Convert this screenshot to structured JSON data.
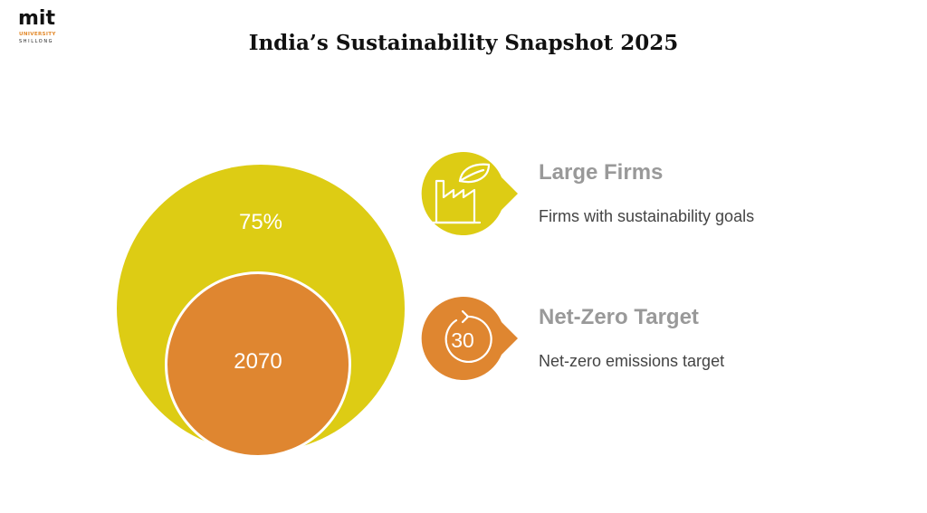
{
  "brand": {
    "logo_text": "mit",
    "logo_subtitle": "UNIVERSITY",
    "logo_location": "SHILLONG"
  },
  "title": "India’s Sustainability Snapshot 2025",
  "circles": {
    "outer": {
      "label": "75%"
    },
    "inner": {
      "label": "2070"
    }
  },
  "items": [
    {
      "icon": "factory-leaf-icon",
      "title": "Large Firms",
      "description": "Firms with sustainability goals"
    },
    {
      "icon": "countdown-30-icon",
      "title": "Net-Zero Target",
      "description": "Net-zero emissions target",
      "icon_text": "30"
    }
  ],
  "colors": {
    "yellow": "#ddcc14",
    "orange": "#df8630",
    "heading_gray": "#999999",
    "text_gray": "#444444",
    "logo_orange": "#e38a2c"
  }
}
